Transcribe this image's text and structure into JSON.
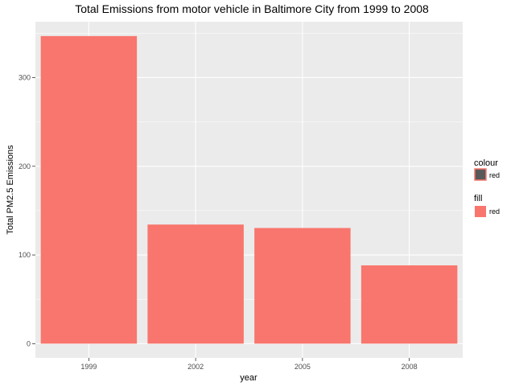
{
  "chart_data": {
    "type": "bar",
    "title": "Total Emissions from motor vehicle in Baltimore City from 1999 to 2008",
    "xlabel": "year",
    "ylabel": "Total PM2.5 Emissions",
    "categories": [
      "1999",
      "2002",
      "2005",
      "2008"
    ],
    "values": [
      346.8,
      134.3,
      130.4,
      88.3
    ],
    "yticks": [
      0,
      100,
      200,
      300
    ],
    "ytick_labels": [
      "0",
      "100",
      "200",
      "300"
    ],
    "ylim": [
      -16,
      363
    ],
    "grid": true,
    "bar_color": "#F8766D",
    "panel_background": "#EBEBEB",
    "gridline_color": "#FFFFFF",
    "legend": {
      "placement": "right",
      "colour": {
        "title": "colour",
        "label": "red",
        "swatch_fill": "#595959",
        "swatch_border": "#F8766D"
      },
      "fill": {
        "title": "fill",
        "label": "red",
        "swatch_fill": "#F8766D"
      }
    }
  }
}
